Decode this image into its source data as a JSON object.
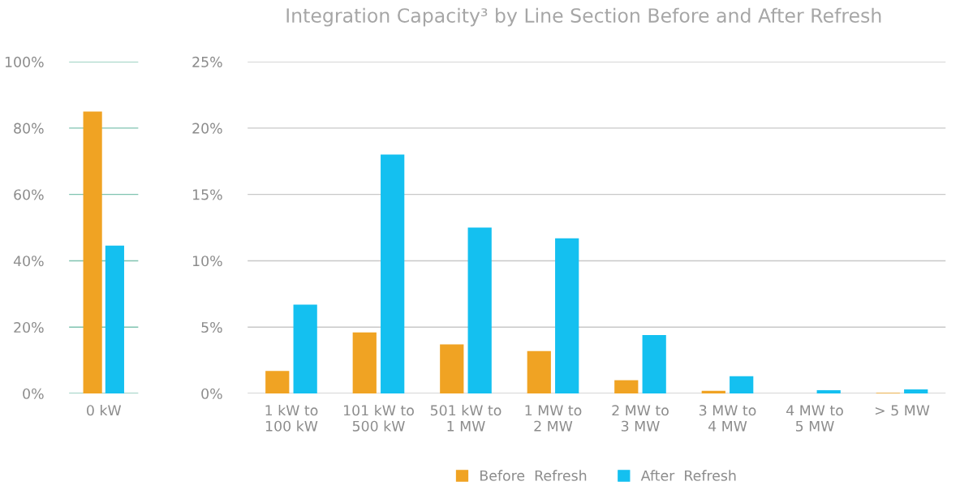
{
  "chart_data": [
    {
      "type": "bar",
      "categories": [
        "0 kW"
      ],
      "series": [
        {
          "color": "#f0a323",
          "values": [
            85
          ]
        },
        {
          "color": "#14c0f0",
          "values": [
            44.6
          ]
        }
      ],
      "ylim": [
        0,
        100
      ],
      "yticks": [
        {
          "value": 0,
          "label": "0%"
        },
        {
          "value": 20,
          "label": "20%"
        },
        {
          "value": 40,
          "label": "40%"
        },
        {
          "value": 60,
          "label": "60%"
        },
        {
          "value": 80,
          "label": "80%"
        },
        {
          "value": 100,
          "label": "100%"
        }
      ],
      "grid": "y"
    },
    {
      "type": "bar",
      "title": "Integration Capacity³ by Line Section Before and After Refresh",
      "categories": [
        "1 kW to\n100 kW",
        "101 kW to\n500 kW",
        "501 kW to\n1 MW",
        "1 MW to\n2 MW",
        "2 MW to\n3 MW",
        "3 MW to\n4 MW",
        "4 MW to\n5 MW",
        "> 5 MW"
      ],
      "series": [
        {
          "name": "Before  Refresh",
          "color": "#f0a323",
          "values": [
            1.7,
            4.6,
            3.7,
            3.2,
            1.0,
            0.2,
            0,
            0.05
          ]
        },
        {
          "name": "After  Refresh",
          "color": "#14c0f0",
          "values": [
            6.7,
            18.0,
            12.5,
            11.7,
            4.4,
            1.3,
            0.25,
            0.3
          ]
        }
      ],
      "ylim": [
        0,
        25
      ],
      "yticks": [
        {
          "value": 0,
          "label": "0%"
        },
        {
          "value": 5,
          "label": "5%"
        },
        {
          "value": 10,
          "label": "10%"
        },
        {
          "value": 15,
          "label": "15%"
        },
        {
          "value": 20,
          "label": "20%"
        },
        {
          "value": 25,
          "label": "25%"
        }
      ],
      "grid": "y",
      "legend": "bottom"
    }
  ]
}
